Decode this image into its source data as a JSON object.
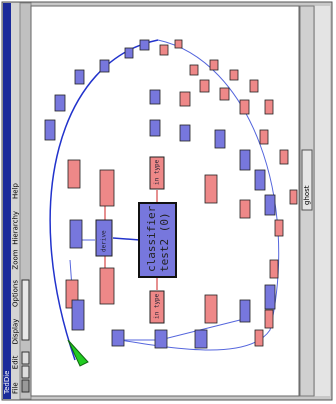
{
  "window": {
    "title": "TedDie",
    "menu": [
      "File",
      "Edit",
      "Display",
      "Options",
      "Zoom",
      "Hierarchy",
      "Help"
    ],
    "scroll_label": "ghost"
  },
  "graph": {
    "center": {
      "line1": "classifier",
      "line2": "test2 (0)"
    },
    "nodes": [
      "in type",
      "in type",
      "derive"
    ]
  }
}
